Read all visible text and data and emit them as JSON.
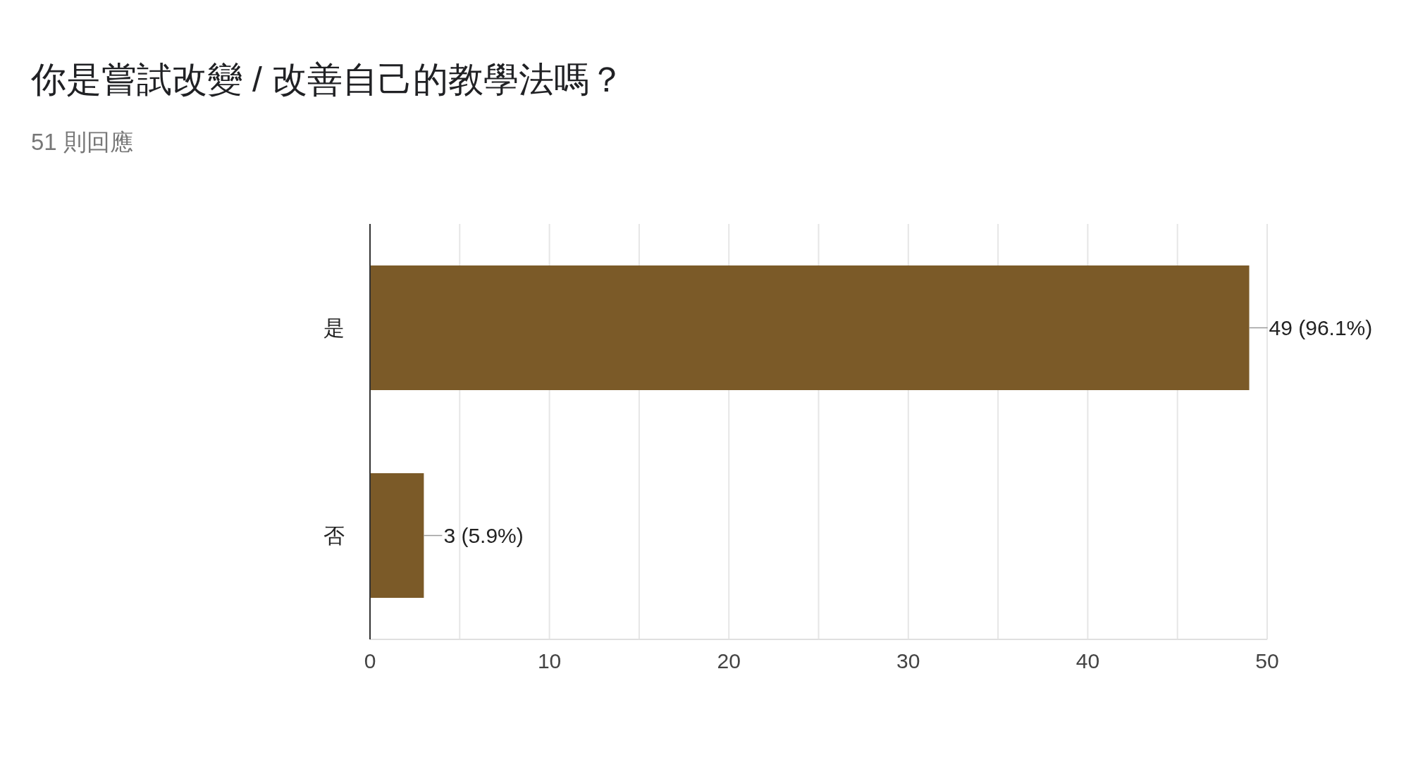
{
  "chart_data": {
    "type": "bar",
    "orientation": "horizontal",
    "title": "你是嘗試改變 / 改善自己的教學法嗎？",
    "subtitle": "51 則回應",
    "categories": [
      "是",
      "否"
    ],
    "values": [
      49,
      3
    ],
    "value_labels": [
      "49 (96.1%)",
      "3 (5.9%)"
    ],
    "color": "#7b5a28",
    "xlim": [
      0,
      50
    ],
    "xticks": [
      0,
      {
        "value": 5,
        "label": null
      },
      10,
      {
        "value": 15,
        "label": null
      },
      20,
      {
        "value": 25,
        "label": null
      },
      30,
      {
        "value": 35,
        "label": null
      },
      40,
      {
        "value": 45,
        "label": null
      },
      50
    ],
    "grid": "x"
  }
}
